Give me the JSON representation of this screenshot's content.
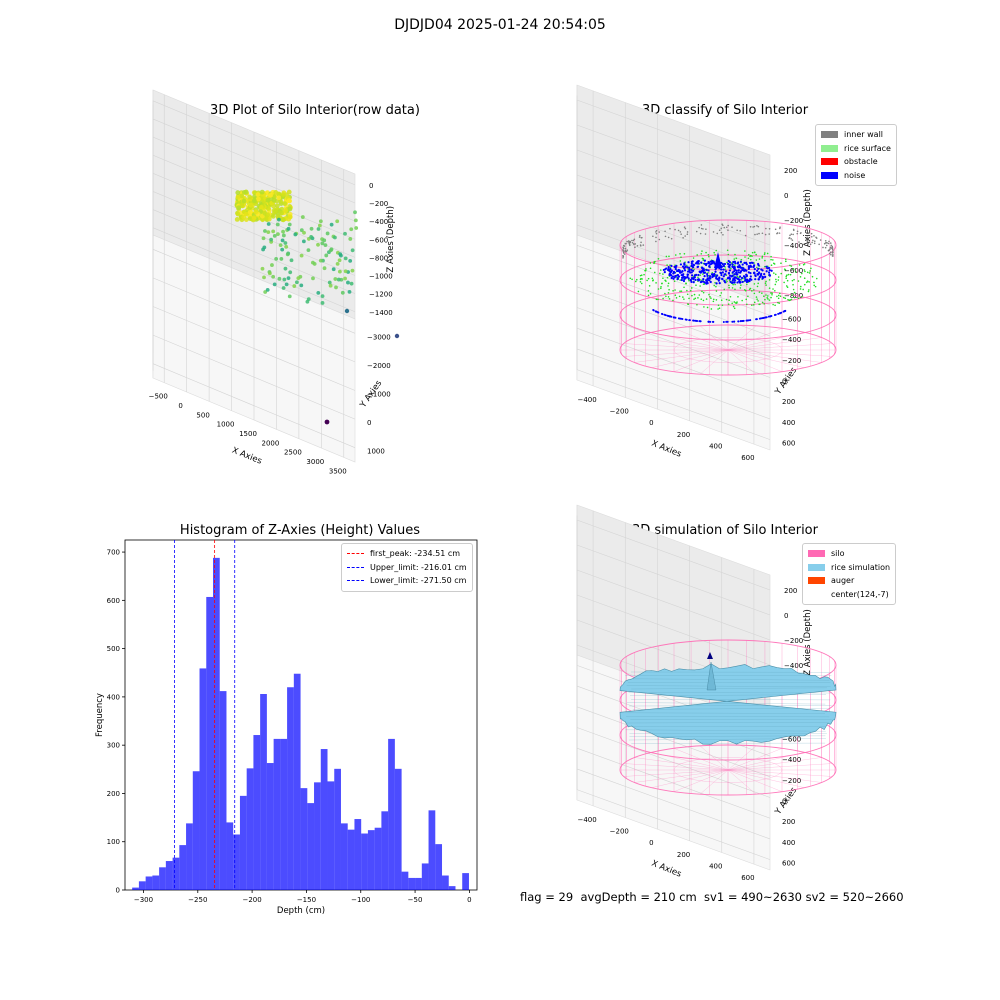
{
  "suptitle": "DJDJD04 2025-01-24 20:54:05",
  "footer": "flag = 29  avgDepth = 210 cm  sv1 = 490~2630 sv2 = 520~2660",
  "chart_data": [
    {
      "type": "scatter",
      "title": "3D Plot of Silo Interior(row data)",
      "xlabel": "X Axies",
      "ylabel": "Y Axies",
      "zlabel": "Z Axies (Depth)",
      "x_ticks": [
        "−500",
        "0",
        "500",
        "1000",
        "1500",
        "2000",
        "2500",
        "3000",
        "3500"
      ],
      "y_ticks": [
        "1000",
        "0",
        "−1000",
        "−2000",
        "−3000"
      ],
      "z_ticks": [
        "0",
        "−200",
        "−400",
        "−600",
        "−800",
        "−1000",
        "−1200",
        "−1400"
      ],
      "colormap": "viridis",
      "points_note": "dense yellow cluster near top; scattered green points; few outliers",
      "outliers": [
        [
          2800,
          -2500,
          -1400
        ],
        [
          2900,
          -500,
          -900
        ],
        [
          2500,
          -200,
          -700
        ]
      ]
    },
    {
      "type": "scatter",
      "title": "3D classify of Silo Interior",
      "xlabel": "X Axies",
      "ylabel": "Y Axies",
      "zlabel": "Z Axies (Depth)",
      "x_ticks": [
        "−400",
        "−200",
        "0",
        "200",
        "400",
        "600"
      ],
      "y_ticks": [
        "600",
        "400",
        "200",
        "0",
        "−200",
        "−400",
        "−600"
      ],
      "z_ticks": [
        "200",
        "0",
        "−200",
        "−400",
        "−600",
        "−800"
      ],
      "legend": [
        {
          "label": "inner wall",
          "color": "#808080"
        },
        {
          "label": "rice surface",
          "color": "#90ee90"
        },
        {
          "label": "obstacle",
          "color": "#ff0000"
        },
        {
          "label": "noise",
          "color": "#0000ff"
        }
      ],
      "cylinder_color": "#ff69b4"
    },
    {
      "type": "bar",
      "title": "Histogram of Z-Axies (Height) Values",
      "xlabel": "Depth (cm)",
      "ylabel": "Frequency",
      "xlim": [
        -317,
        7
      ],
      "ylim": [
        0,
        725
      ],
      "x_ticks": [
        -300,
        -250,
        -200,
        -150,
        -100,
        -50,
        0
      ],
      "x_tick_labels": [
        "−300",
        "−250",
        "−200",
        "−150",
        "−100",
        "−50",
        "0"
      ],
      "y_ticks": [
        0,
        100,
        200,
        300,
        400,
        500,
        600,
        700
      ],
      "bar_color": "#0000ff",
      "bin_start": -310.4,
      "bin_width": 6.2,
      "values": [
        5,
        18,
        28,
        30,
        47,
        60,
        67,
        93,
        138,
        246,
        459,
        607,
        688,
        412,
        140,
        115,
        195,
        252,
        321,
        406,
        263,
        313,
        313,
        420,
        448,
        211,
        180,
        223,
        292,
        225,
        251,
        138,
        125,
        147,
        117,
        124,
        129,
        163,
        313,
        251,
        38,
        25,
        25,
        55,
        165,
        95,
        30,
        8,
        0,
        35
      ],
      "vlines": [
        {
          "label": "first_peak: -234.51 cm",
          "x": -234.51,
          "color": "#ff0000"
        },
        {
          "label": "Upper_limit: -216.01 cm",
          "x": -216.01,
          "color": "#0000ff"
        },
        {
          "label": "Lower_limit: -271.50 cm",
          "x": -271.5,
          "color": "#0000ff"
        }
      ]
    },
    {
      "type": "area",
      "title": "3D simulation of Silo Interior",
      "xlabel": "X Axies",
      "ylabel": "Y Axies",
      "zlabel": "Z Axies (Depth)",
      "x_ticks": [
        "−400",
        "−200",
        "0",
        "200",
        "400",
        "600"
      ],
      "y_ticks": [
        "600",
        "400",
        "200",
        "0",
        "−200",
        "−400",
        "−600"
      ],
      "z_ticks": [
        "200",
        "0",
        "−200",
        "−400",
        "−600",
        "−800"
      ],
      "legend": [
        {
          "label": "silo",
          "color": "#ff69b4"
        },
        {
          "label": "rice simulation",
          "color": "#87ceeb"
        },
        {
          "label": "auger",
          "color": "#ff4500"
        },
        {
          "label": "center(124,-7)",
          "color": ""
        }
      ]
    }
  ]
}
